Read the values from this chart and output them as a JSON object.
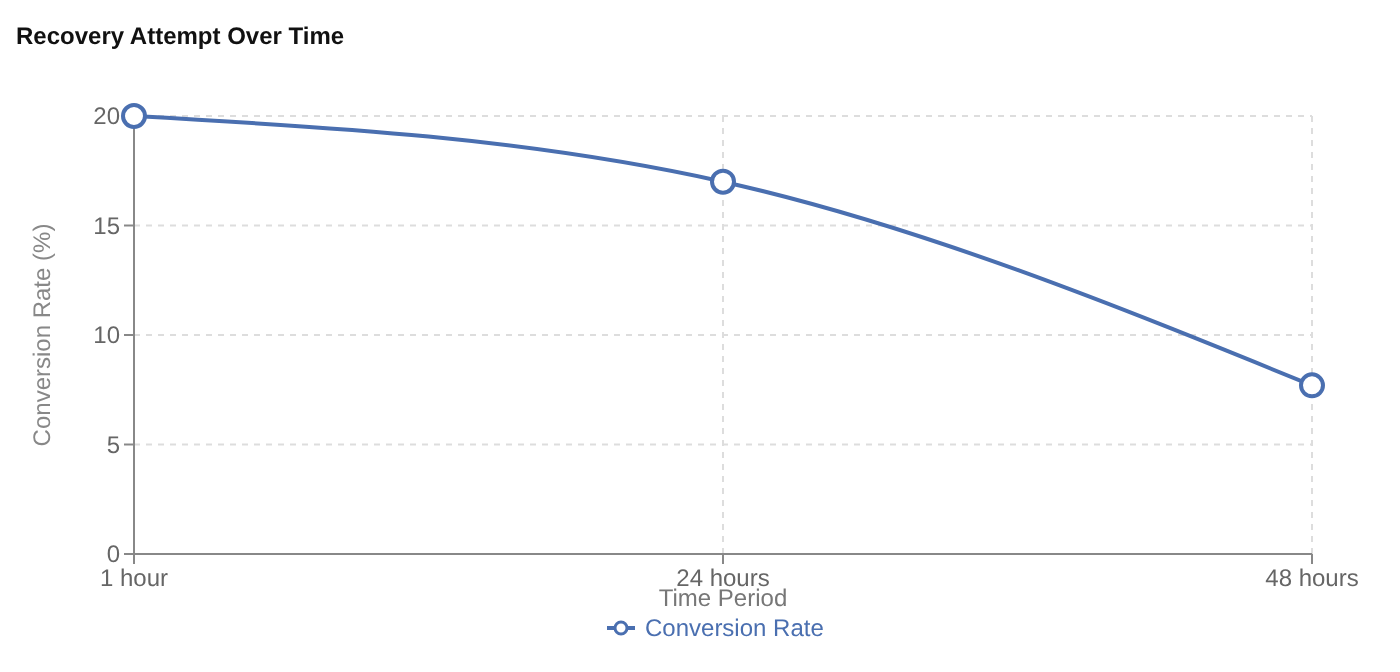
{
  "chart_data": {
    "type": "line",
    "title": "Recovery Attempt Over Time",
    "xlabel": "Time Period",
    "ylabel": "Conversion Rate (%)",
    "categories": [
      "1 hour",
      "24 hours",
      "48 hours"
    ],
    "series": [
      {
        "name": "Conversion Rate",
        "color": "#4a6fb0",
        "values": [
          20,
          17,
          7.7
        ]
      }
    ],
    "ylim": [
      0,
      20
    ],
    "yticks": [
      0,
      5,
      10,
      15,
      20
    ],
    "grid": true,
    "legend": "bottom",
    "marker": "circle"
  }
}
